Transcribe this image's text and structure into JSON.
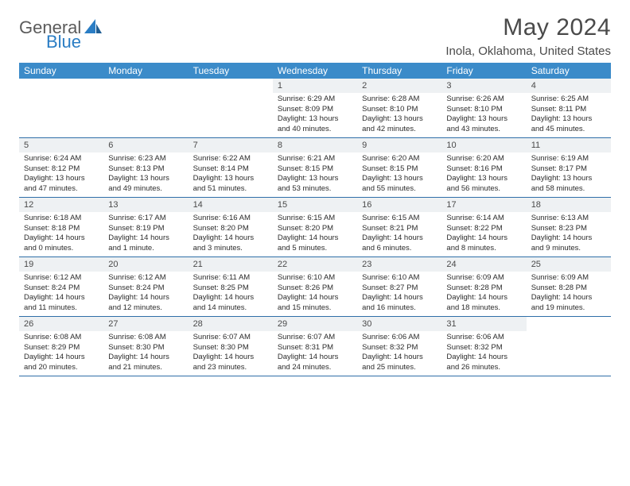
{
  "brand": {
    "part1": "General",
    "part2": "Blue",
    "part1_color": "#5b5b5b",
    "part2_color": "#2a7dc4",
    "icon_color": "#2a7dc4"
  },
  "title": "May 2024",
  "location": "Inola, Oklahoma, United States",
  "colors": {
    "header_bg": "#3b8bc9",
    "header_text": "#ffffff",
    "daynum_bg": "#eef1f3",
    "text": "#2b2b2b",
    "rule": "#2f6fa8"
  },
  "weekdays": [
    "Sunday",
    "Monday",
    "Tuesday",
    "Wednesday",
    "Thursday",
    "Friday",
    "Saturday"
  ],
  "weeks": [
    [
      null,
      null,
      null,
      {
        "n": "1",
        "sunrise": "Sunrise: 6:29 AM",
        "sunset": "Sunset: 8:09 PM",
        "daylight": "Daylight: 13 hours and 40 minutes."
      },
      {
        "n": "2",
        "sunrise": "Sunrise: 6:28 AM",
        "sunset": "Sunset: 8:10 PM",
        "daylight": "Daylight: 13 hours and 42 minutes."
      },
      {
        "n": "3",
        "sunrise": "Sunrise: 6:26 AM",
        "sunset": "Sunset: 8:10 PM",
        "daylight": "Daylight: 13 hours and 43 minutes."
      },
      {
        "n": "4",
        "sunrise": "Sunrise: 6:25 AM",
        "sunset": "Sunset: 8:11 PM",
        "daylight": "Daylight: 13 hours and 45 minutes."
      }
    ],
    [
      {
        "n": "5",
        "sunrise": "Sunrise: 6:24 AM",
        "sunset": "Sunset: 8:12 PM",
        "daylight": "Daylight: 13 hours and 47 minutes."
      },
      {
        "n": "6",
        "sunrise": "Sunrise: 6:23 AM",
        "sunset": "Sunset: 8:13 PM",
        "daylight": "Daylight: 13 hours and 49 minutes."
      },
      {
        "n": "7",
        "sunrise": "Sunrise: 6:22 AM",
        "sunset": "Sunset: 8:14 PM",
        "daylight": "Daylight: 13 hours and 51 minutes."
      },
      {
        "n": "8",
        "sunrise": "Sunrise: 6:21 AM",
        "sunset": "Sunset: 8:15 PM",
        "daylight": "Daylight: 13 hours and 53 minutes."
      },
      {
        "n": "9",
        "sunrise": "Sunrise: 6:20 AM",
        "sunset": "Sunset: 8:15 PM",
        "daylight": "Daylight: 13 hours and 55 minutes."
      },
      {
        "n": "10",
        "sunrise": "Sunrise: 6:20 AM",
        "sunset": "Sunset: 8:16 PM",
        "daylight": "Daylight: 13 hours and 56 minutes."
      },
      {
        "n": "11",
        "sunrise": "Sunrise: 6:19 AM",
        "sunset": "Sunset: 8:17 PM",
        "daylight": "Daylight: 13 hours and 58 minutes."
      }
    ],
    [
      {
        "n": "12",
        "sunrise": "Sunrise: 6:18 AM",
        "sunset": "Sunset: 8:18 PM",
        "daylight": "Daylight: 14 hours and 0 minutes."
      },
      {
        "n": "13",
        "sunrise": "Sunrise: 6:17 AM",
        "sunset": "Sunset: 8:19 PM",
        "daylight": "Daylight: 14 hours and 1 minute."
      },
      {
        "n": "14",
        "sunrise": "Sunrise: 6:16 AM",
        "sunset": "Sunset: 8:20 PM",
        "daylight": "Daylight: 14 hours and 3 minutes."
      },
      {
        "n": "15",
        "sunrise": "Sunrise: 6:15 AM",
        "sunset": "Sunset: 8:20 PM",
        "daylight": "Daylight: 14 hours and 5 minutes."
      },
      {
        "n": "16",
        "sunrise": "Sunrise: 6:15 AM",
        "sunset": "Sunset: 8:21 PM",
        "daylight": "Daylight: 14 hours and 6 minutes."
      },
      {
        "n": "17",
        "sunrise": "Sunrise: 6:14 AM",
        "sunset": "Sunset: 8:22 PM",
        "daylight": "Daylight: 14 hours and 8 minutes."
      },
      {
        "n": "18",
        "sunrise": "Sunrise: 6:13 AM",
        "sunset": "Sunset: 8:23 PM",
        "daylight": "Daylight: 14 hours and 9 minutes."
      }
    ],
    [
      {
        "n": "19",
        "sunrise": "Sunrise: 6:12 AM",
        "sunset": "Sunset: 8:24 PM",
        "daylight": "Daylight: 14 hours and 11 minutes."
      },
      {
        "n": "20",
        "sunrise": "Sunrise: 6:12 AM",
        "sunset": "Sunset: 8:24 PM",
        "daylight": "Daylight: 14 hours and 12 minutes."
      },
      {
        "n": "21",
        "sunrise": "Sunrise: 6:11 AM",
        "sunset": "Sunset: 8:25 PM",
        "daylight": "Daylight: 14 hours and 14 minutes."
      },
      {
        "n": "22",
        "sunrise": "Sunrise: 6:10 AM",
        "sunset": "Sunset: 8:26 PM",
        "daylight": "Daylight: 14 hours and 15 minutes."
      },
      {
        "n": "23",
        "sunrise": "Sunrise: 6:10 AM",
        "sunset": "Sunset: 8:27 PM",
        "daylight": "Daylight: 14 hours and 16 minutes."
      },
      {
        "n": "24",
        "sunrise": "Sunrise: 6:09 AM",
        "sunset": "Sunset: 8:28 PM",
        "daylight": "Daylight: 14 hours and 18 minutes."
      },
      {
        "n": "25",
        "sunrise": "Sunrise: 6:09 AM",
        "sunset": "Sunset: 8:28 PM",
        "daylight": "Daylight: 14 hours and 19 minutes."
      }
    ],
    [
      {
        "n": "26",
        "sunrise": "Sunrise: 6:08 AM",
        "sunset": "Sunset: 8:29 PM",
        "daylight": "Daylight: 14 hours and 20 minutes."
      },
      {
        "n": "27",
        "sunrise": "Sunrise: 6:08 AM",
        "sunset": "Sunset: 8:30 PM",
        "daylight": "Daylight: 14 hours and 21 minutes."
      },
      {
        "n": "28",
        "sunrise": "Sunrise: 6:07 AM",
        "sunset": "Sunset: 8:30 PM",
        "daylight": "Daylight: 14 hours and 23 minutes."
      },
      {
        "n": "29",
        "sunrise": "Sunrise: 6:07 AM",
        "sunset": "Sunset: 8:31 PM",
        "daylight": "Daylight: 14 hours and 24 minutes."
      },
      {
        "n": "30",
        "sunrise": "Sunrise: 6:06 AM",
        "sunset": "Sunset: 8:32 PM",
        "daylight": "Daylight: 14 hours and 25 minutes."
      },
      {
        "n": "31",
        "sunrise": "Sunrise: 6:06 AM",
        "sunset": "Sunset: 8:32 PM",
        "daylight": "Daylight: 14 hours and 26 minutes."
      },
      null
    ]
  ]
}
